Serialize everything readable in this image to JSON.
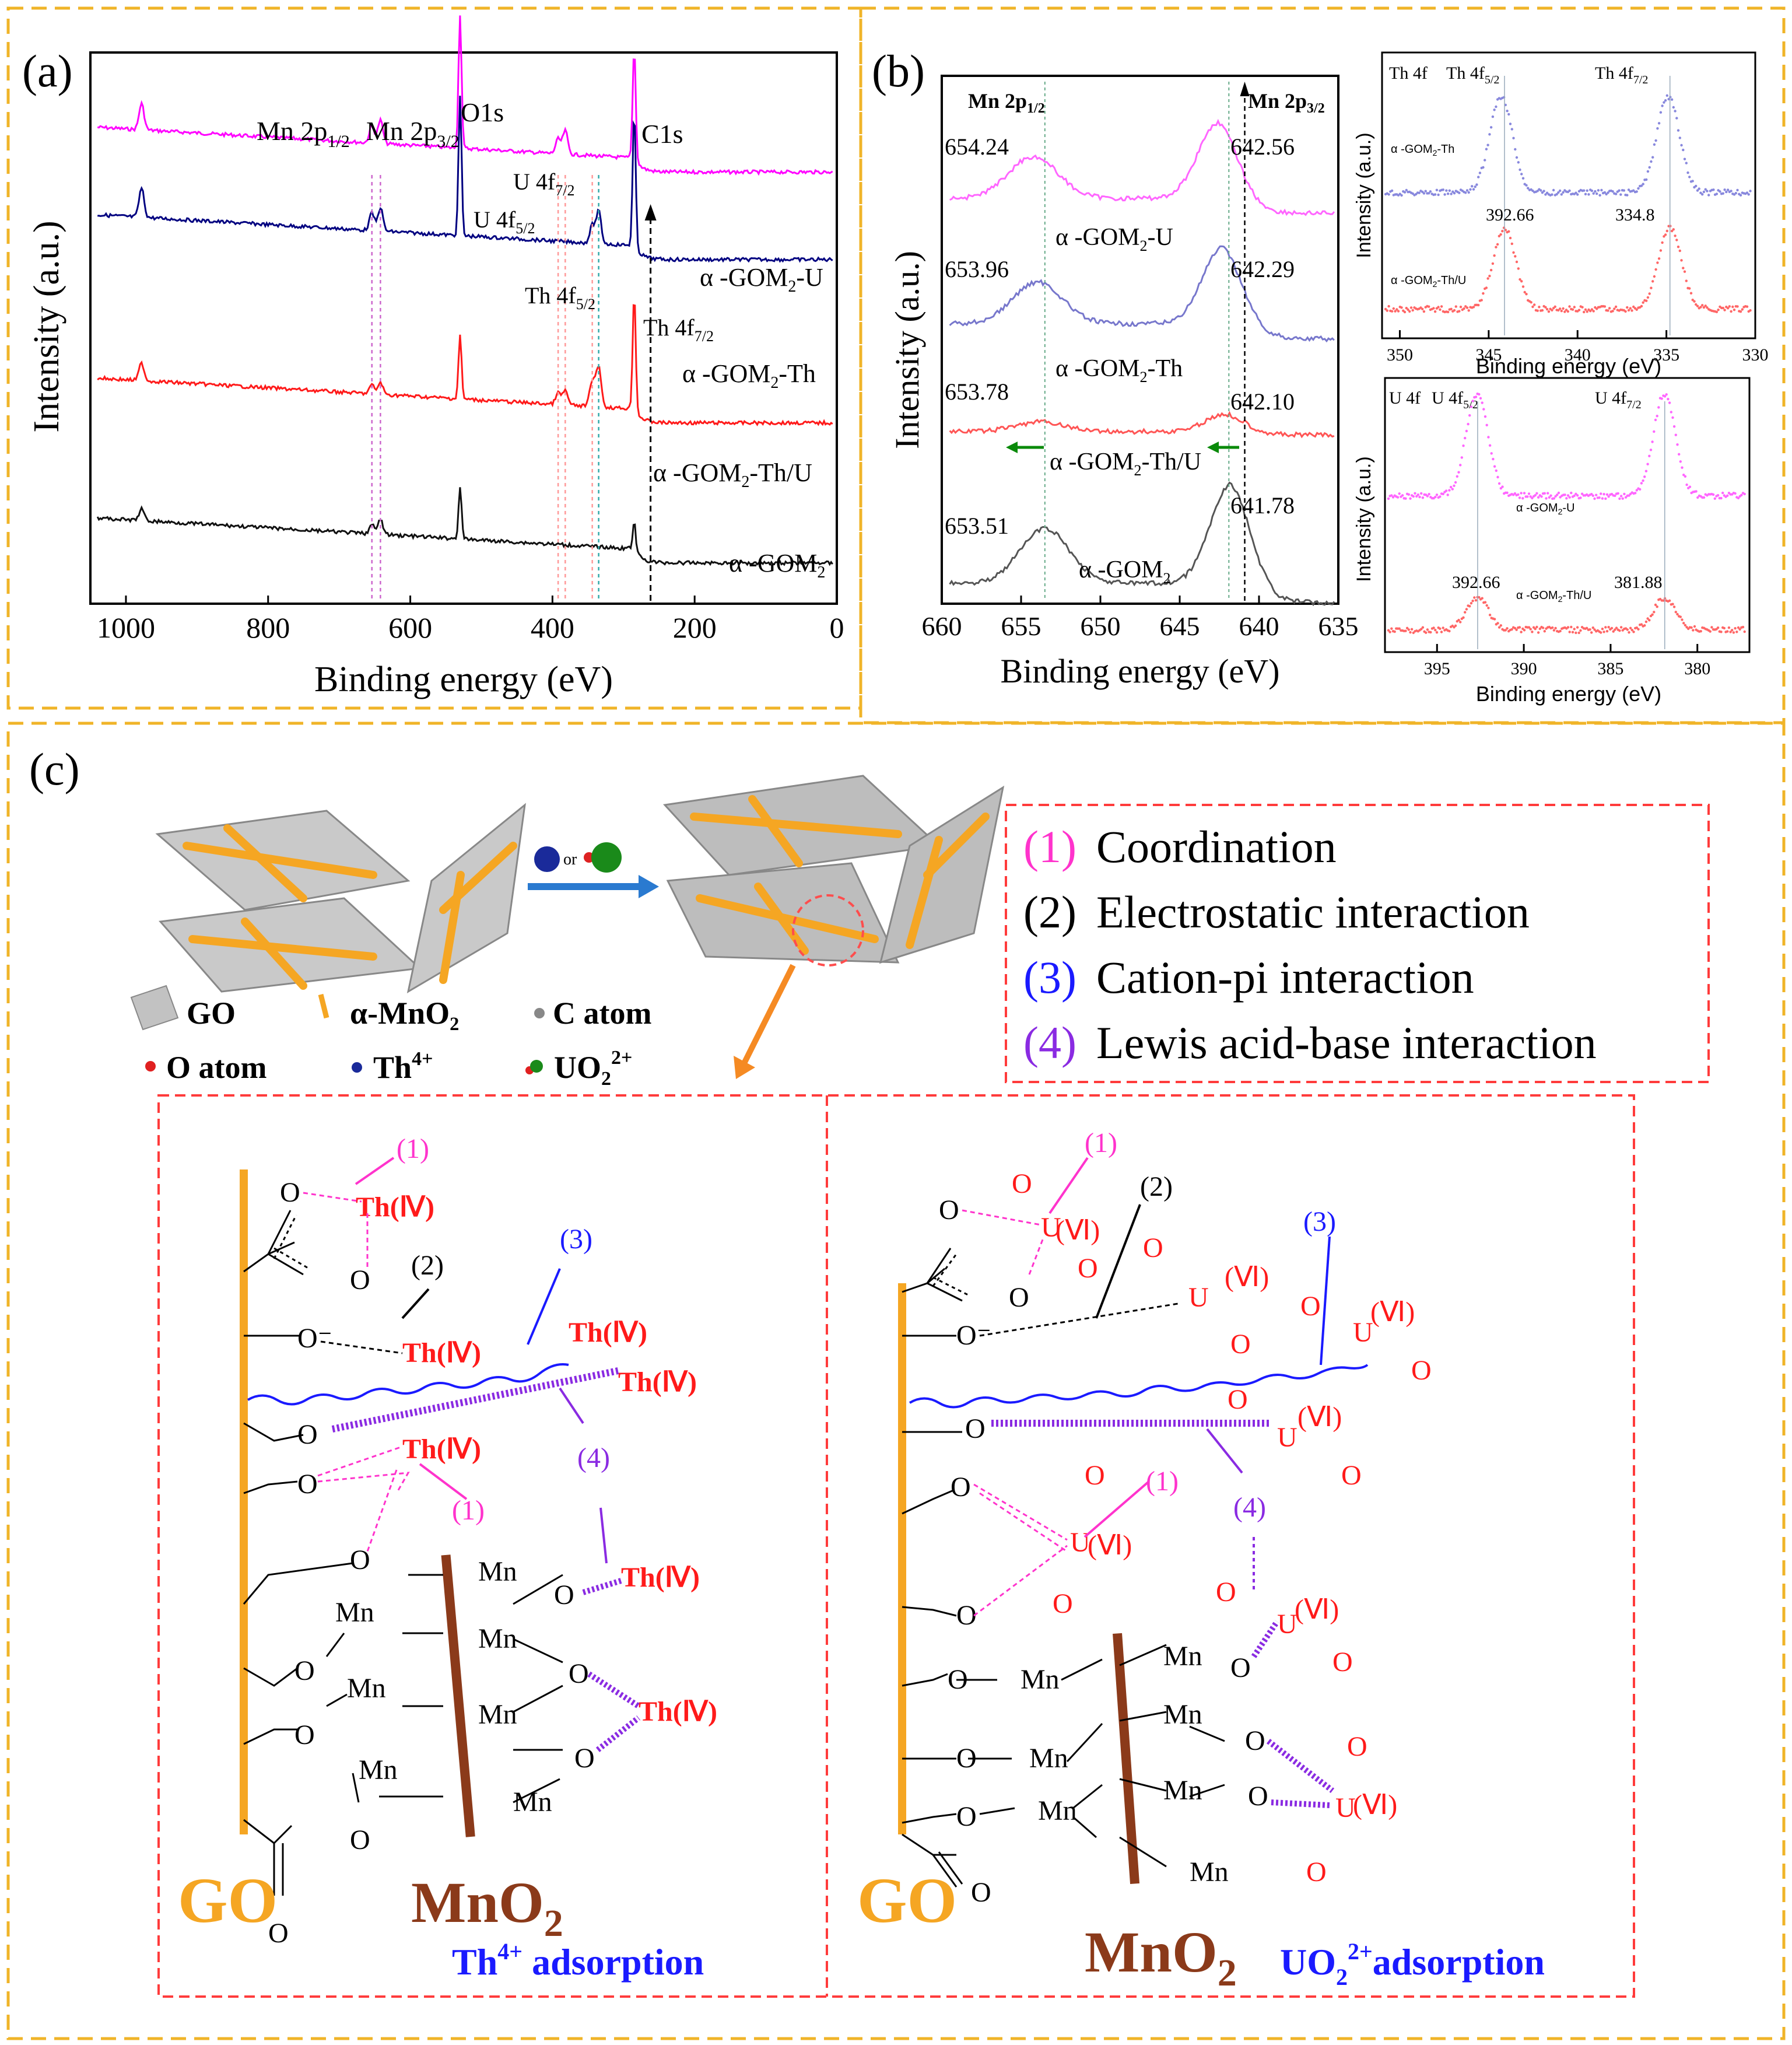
{
  "panel_labels": {
    "a": "(a)",
    "b": "(b)",
    "c": "(c)"
  },
  "chart_data": [
    {
      "panel": "(a)",
      "type": "line",
      "xlabel": "Binding energy (eV)",
      "ylabel": "Intensity (a.u.)",
      "x_reversed": true,
      "xlim": [
        1050,
        0
      ],
      "xticks": [
        1000,
        800,
        600,
        400,
        200,
        0
      ],
      "grid": false,
      "series": [
        {
          "name": "α -GOM₂-U",
          "color": "#ff00ff"
        },
        {
          "name": "α -GOM₂-Th",
          "color": "#000080"
        },
        {
          "name": "α -GOM₂-Th/U",
          "color": "#ff1a1a"
        },
        {
          "name": "α -GOM₂",
          "color": "#111111"
        }
      ],
      "peaks": [
        {
          "label": "Mn 2p₁/₂",
          "x": 654
        },
        {
          "label": "Mn 2p₃/₂",
          "x": 642
        },
        {
          "label": "O1s",
          "x": 530
        },
        {
          "label": "U 4f₇/₂",
          "x": 382
        },
        {
          "label": "U 4f₅/₂",
          "x": 392
        },
        {
          "label": "Th 4f₅/₂",
          "x": 344
        },
        {
          "label": "Th 4f₇/₂",
          "x": 335
        },
        {
          "label": "C1s",
          "x": 285
        }
      ]
    },
    {
      "panel": "(b)",
      "type": "line",
      "xlabel": "Binding energy (eV)",
      "ylabel": "Intensity (a.u.)",
      "x_reversed": true,
      "xlim": [
        660,
        635
      ],
      "xticks": [
        660,
        655,
        650,
        645,
        640,
        635
      ],
      "header_left": "Mn 2p₁/₂",
      "header_right": "Mn 2p₃/₂",
      "series": [
        {
          "name": "α -GOM₂-U",
          "color": "#ff66ff",
          "peak_2p12": 654.24,
          "peak_2p32": 642.56
        },
        {
          "name": "α -GOM₂-Th",
          "color": "#7777cc",
          "peak_2p12": 653.96,
          "peak_2p32": 642.29
        },
        {
          "name": "α -GOM₂-Th/U",
          "color": "#ff5555",
          "peak_2p12": 653.78,
          "peak_2p32": 642.1
        },
        {
          "name": "α -GOM₂",
          "color": "#555555",
          "peak_2p12": 653.51,
          "peak_2p32": 641.78
        }
      ]
    },
    {
      "panel": "(b) inset Th 4f",
      "type": "line",
      "title": "Th 4f",
      "xlabel": "Binding energy (eV)",
      "ylabel": "Intensity (a.u.)",
      "x_reversed": true,
      "xlim": [
        351,
        330
      ],
      "xticks": [
        350,
        345,
        340,
        335,
        330
      ],
      "peak_labels": [
        "Th 4f₅/₂",
        "Th 4f₇/₂"
      ],
      "series": [
        {
          "name": "α -GOM₂-Th",
          "color": "#8888dd",
          "peaks": [
            344.3,
            334.9
          ]
        },
        {
          "name": "α -GOM₂-Th/U",
          "color": "#ff6666",
          "peaks": [
            344.11,
            334.8
          ]
        }
      ]
    },
    {
      "panel": "(b) inset U 4f",
      "type": "line",
      "title": "U 4f",
      "xlabel": "Binding energy (eV)",
      "ylabel": "Intensity (a.u.)",
      "x_reversed": true,
      "xlim": [
        398,
        377
      ],
      "xticks": [
        395,
        390,
        385,
        380
      ],
      "peak_labels": [
        "U 4f₅/₂",
        "U 4f₇/₂"
      ],
      "series": [
        {
          "name": "α -GOM₂-U",
          "color": "#ff66ff",
          "peaks": [
            392.7,
            381.9
          ]
        },
        {
          "name": "α -GOM₂-Th/U",
          "color": "#ff6666",
          "peaks": [
            392.66,
            381.88
          ]
        }
      ]
    }
  ],
  "panel_c": {
    "legend": {
      "go": "GO",
      "mno2": "α-MnO₂",
      "c_atom": "C atom",
      "o_atom": "O atom",
      "th": "Th⁴⁺",
      "uo2": "UO₂²⁺",
      "or": "or"
    },
    "mechanisms": [
      "(1)",
      "(2)",
      "(3)",
      "(4)"
    ],
    "mechanism_names": [
      "Coordination",
      "Electrostatic interaction",
      "Cation-pi interaction",
      "Lewis acid-base interaction"
    ],
    "left_scheme": {
      "go_label": "GO",
      "mno2_label": "MnO₂",
      "caption": "Th⁴⁺ adsorption",
      "ion": "Th(Ⅳ)"
    },
    "right_scheme": {
      "go_label": "GO",
      "mno2_label": "MnO₂",
      "caption": "UO₂²⁺adsorption",
      "ion": "U(Ⅵ)"
    },
    "atoms": {
      "O": "O",
      "O_minus": "O⁻",
      "Mn": "Mn",
      "U": "U"
    }
  },
  "colors": {
    "frame": "#f0b428",
    "box": "#ff3b3b",
    "go": "#f5a623",
    "mno2": "#8b3a1a",
    "blue": "#1a1aff",
    "pink": "#ff33cc",
    "purple": "#8a2be2"
  }
}
